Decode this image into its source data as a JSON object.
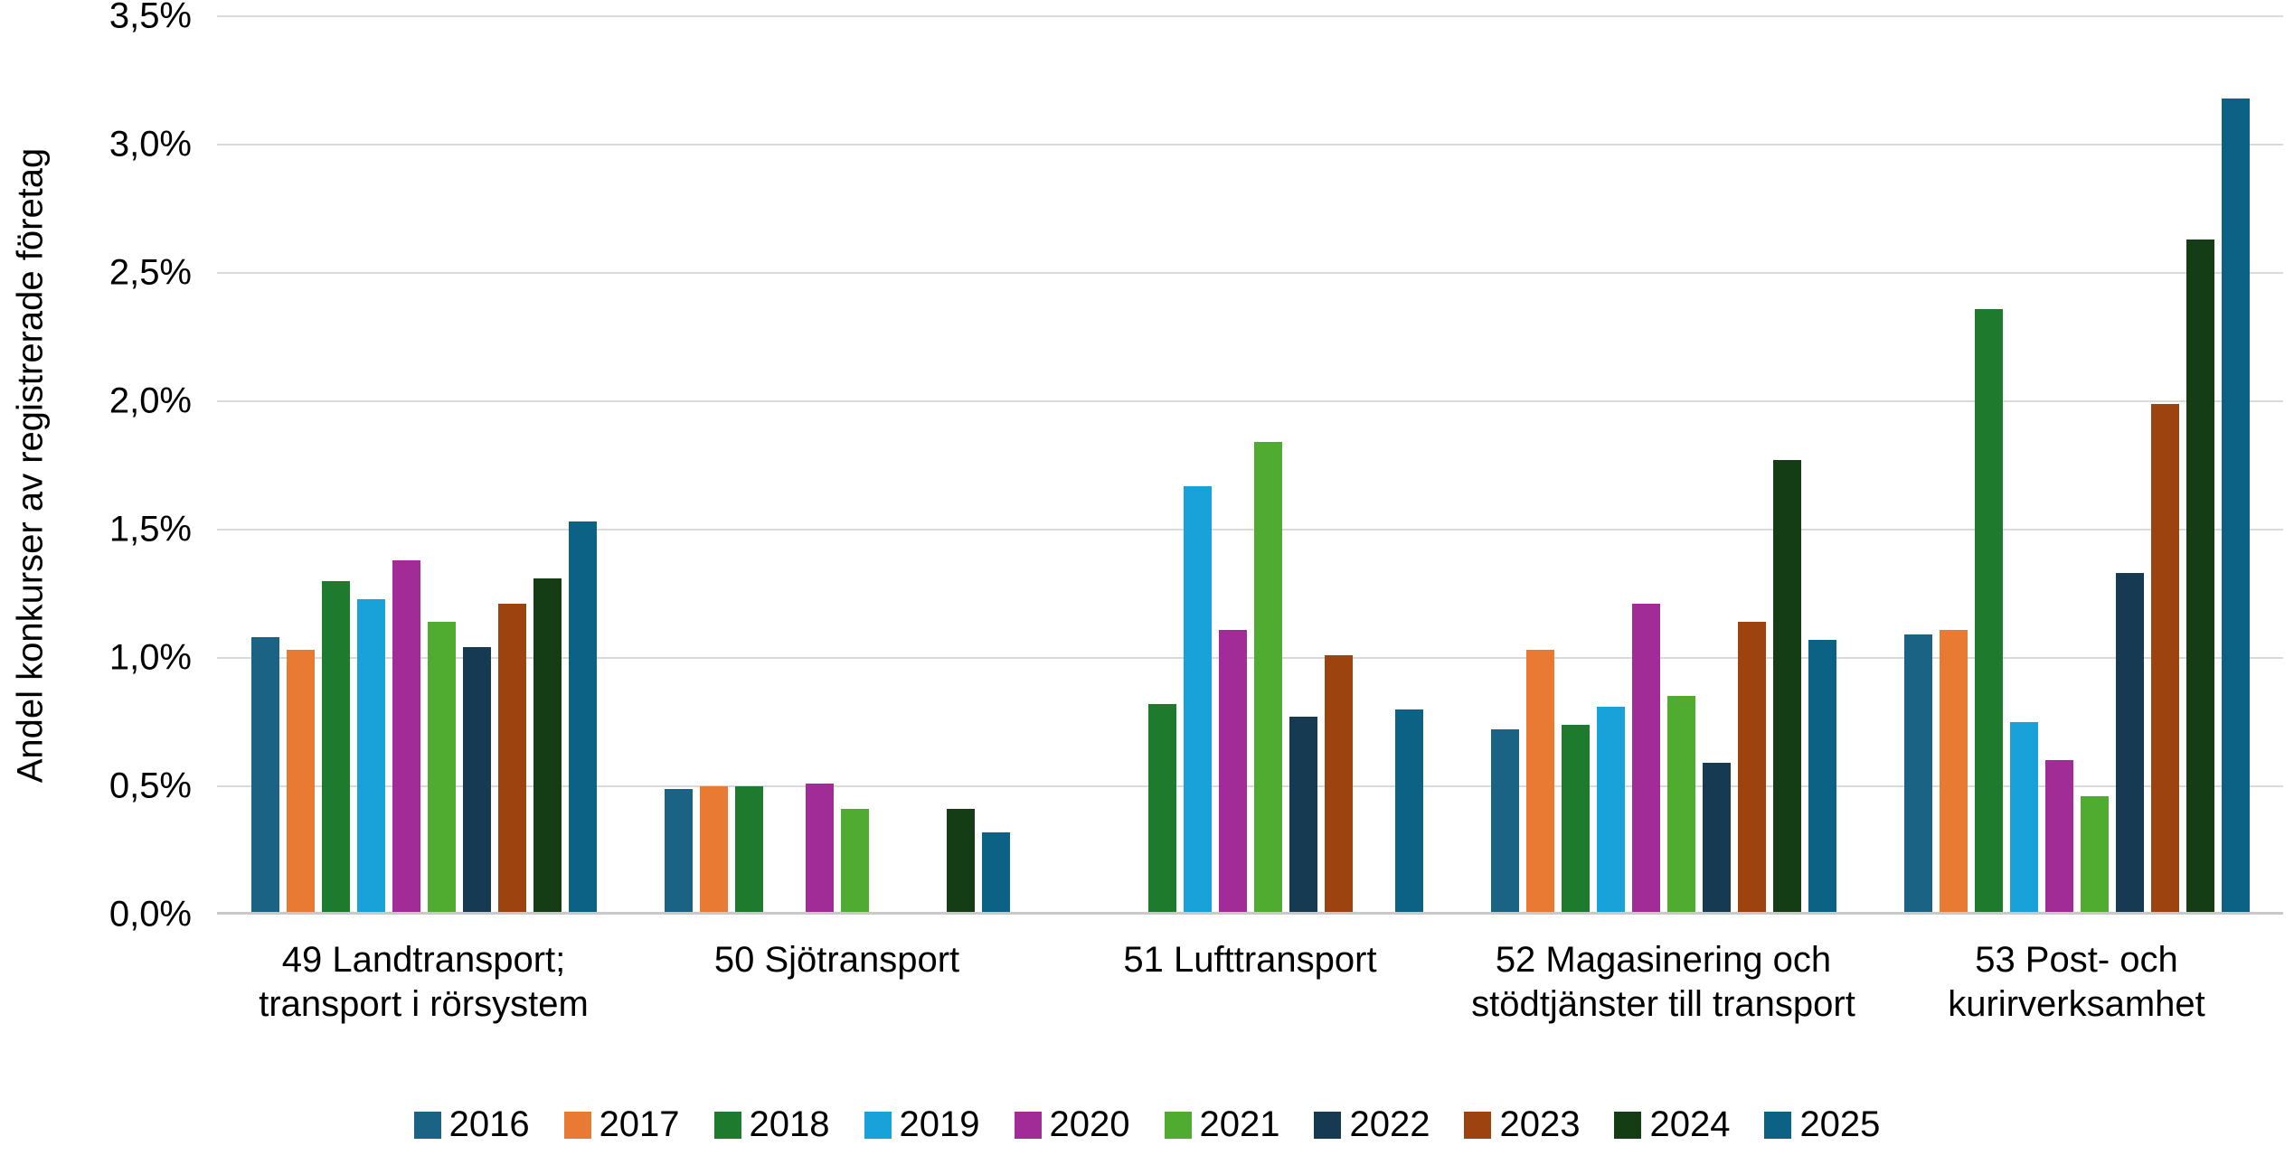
{
  "page": {
    "background": "#ffffff",
    "text_color": "#000000",
    "gridline_color": "#dadada",
    "axis_line_color": "#c9c9c9"
  },
  "chart_data": {
    "type": "bar",
    "title": "",
    "xlabel": "",
    "ylabel": "Andel konkurser av registrerade företag",
    "ylim": [
      0,
      3.5
    ],
    "ytick_step": 0.5,
    "yticks": [
      {
        "value": 0.0,
        "label": "0,0%"
      },
      {
        "value": 0.5,
        "label": "0,5%"
      },
      {
        "value": 1.0,
        "label": "1,0%"
      },
      {
        "value": 1.5,
        "label": "1,5%"
      },
      {
        "value": 2.0,
        "label": "2,0%"
      },
      {
        "value": 2.5,
        "label": "2,5%"
      },
      {
        "value": 3.0,
        "label": "3,0%"
      },
      {
        "value": 3.5,
        "label": "3,5%"
      }
    ],
    "grid": true,
    "legend_position": "bottom",
    "unit": "percent",
    "categories": [
      "49 Landtransport;\ntransport i rörsystem",
      "50 Sjötransport",
      "51 Lufttransport",
      "52 Magasinering och\nstödtjänster till transport",
      "53 Post- och\nkurirverksamhet"
    ],
    "series": [
      {
        "name": "2016",
        "color": "#1b6384",
        "values": [
          1.07,
          0.48,
          0,
          0.71,
          1.08
        ]
      },
      {
        "name": "2017",
        "color": "#e87a33",
        "values": [
          1.02,
          0.49,
          0,
          1.02,
          1.1
        ]
      },
      {
        "name": "2018",
        "color": "#1e7b2d",
        "values": [
          1.29,
          0.49,
          0.81,
          0.73,
          2.35
        ]
      },
      {
        "name": "2019",
        "color": "#18a2d9",
        "values": [
          1.22,
          0,
          1.66,
          0.8,
          0.74
        ]
      },
      {
        "name": "2020",
        "color": "#a22c97",
        "values": [
          1.37,
          0.5,
          1.1,
          1.2,
          0.59
        ]
      },
      {
        "name": "2021",
        "color": "#4fac30",
        "values": [
          1.13,
          0.4,
          1.83,
          0.84,
          0.45
        ]
      },
      {
        "name": "2022",
        "color": "#153a51",
        "values": [
          1.03,
          0,
          0.76,
          0.58,
          1.32
        ]
      },
      {
        "name": "2023",
        "color": "#9c430f",
        "values": [
          1.2,
          0,
          1.0,
          1.13,
          1.98
        ]
      },
      {
        "name": "2024",
        "color": "#143d16",
        "values": [
          1.3,
          0.4,
          0,
          1.76,
          2.62
        ]
      },
      {
        "name": "2025",
        "color": "#0c6285",
        "values": [
          1.52,
          0.31,
          0.79,
          1.06,
          3.17
        ]
      }
    ]
  }
}
